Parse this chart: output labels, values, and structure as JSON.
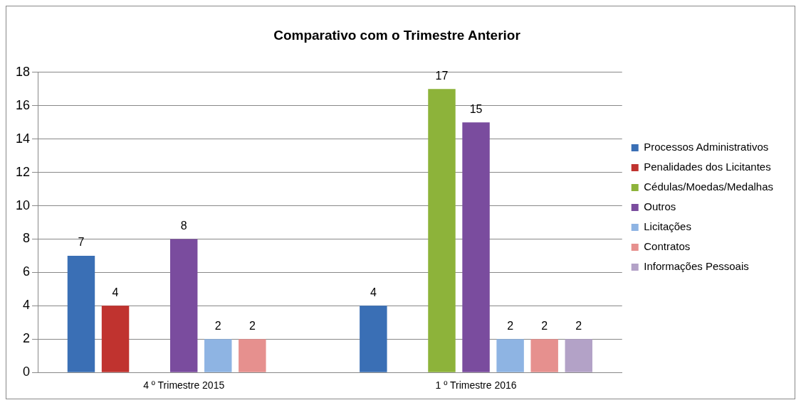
{
  "chart_data": {
    "type": "bar",
    "title": "Comparativo com o Trimestre Anterior",
    "categories": [
      "4 º Trimestre 2015",
      "1 º Trimestre 2016"
    ],
    "series": [
      {
        "name": "Processos Administrativos",
        "color": "#3a6fb5",
        "values": [
          7,
          4
        ]
      },
      {
        "name": "Penalidades dos Licitantes",
        "color": "#c0332f",
        "values": [
          4,
          null
        ]
      },
      {
        "name": "Cédulas/Moedas/Medalhas",
        "color": "#8db33a",
        "values": [
          null,
          17
        ]
      },
      {
        "name": "Outros",
        "color": "#7a4c9e",
        "values": [
          8,
          15
        ]
      },
      {
        "name": "Licitações",
        "color": "#8eb4e3",
        "values": [
          2,
          2
        ]
      },
      {
        "name": "Contratos",
        "color": "#e6908e",
        "values": [
          2,
          2
        ]
      },
      {
        "name": "Informações Pessoais",
        "color": "#b3a2c7",
        "values": [
          null,
          2
        ]
      }
    ],
    "ylim": [
      0,
      18
    ],
    "yticks": [
      0,
      2,
      4,
      6,
      8,
      10,
      12,
      14,
      16,
      18
    ],
    "grid": "y",
    "legend": "right",
    "data_labels": true
  }
}
